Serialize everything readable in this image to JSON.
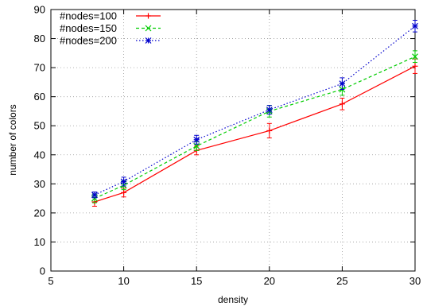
{
  "chart_data": {
    "type": "line",
    "title": "",
    "xlabel": "density",
    "ylabel": "number of colors",
    "xlim": [
      5,
      30
    ],
    "ylim": [
      0,
      90
    ],
    "x_ticks": [
      5,
      10,
      15,
      20,
      25,
      30
    ],
    "y_ticks": [
      0,
      10,
      20,
      30,
      40,
      50,
      60,
      70,
      80,
      90
    ],
    "grid": true,
    "legend_position": "top-left",
    "x": [
      8,
      10,
      15,
      20,
      25,
      30
    ],
    "series": [
      {
        "name": "#nodes=100",
        "color": "#ff0000",
        "line_style": "solid",
        "marker": "plus",
        "values": [
          23.8,
          27.0,
          41.5,
          48.3,
          57.5,
          70.5
        ],
        "error": [
          1.5,
          1.5,
          1.5,
          2.5,
          2.0,
          2.5
        ]
      },
      {
        "name": "#nodes=150",
        "color": "#00cc00",
        "line_style": "dashed",
        "marker": "cross",
        "values": [
          25.0,
          29.5,
          43.0,
          55.0,
          62.5,
          73.8
        ],
        "error": [
          1.5,
          1.5,
          1.5,
          2.0,
          2.0,
          2.0
        ]
      },
      {
        "name": "#nodes=200",
        "color": "#0000cc",
        "line_style": "dotted",
        "marker": "star",
        "values": [
          26.2,
          30.8,
          45.2,
          55.5,
          64.5,
          84.3
        ],
        "error": [
          1.0,
          1.5,
          1.5,
          1.5,
          2.0,
          2.0
        ]
      }
    ]
  }
}
